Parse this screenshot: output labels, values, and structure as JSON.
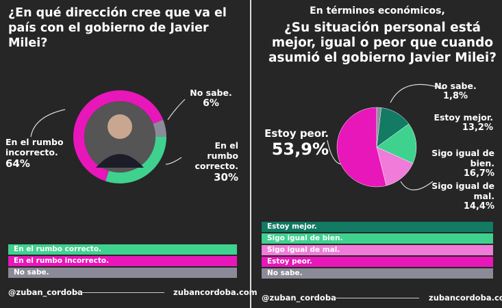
{
  "chart_data": [
    {
      "type": "donut",
      "title": "¿En qué dirección cree que va el país con el gobierno de Javier Milei?",
      "categories": [
        "En el rumbo correcto.",
        "En el rumbo incorrecto.",
        "No sabe."
      ],
      "values": [
        30,
        64,
        6
      ],
      "value_labels": [
        "30%",
        "64%",
        "6%"
      ],
      "colors": [
        "#3fd18e",
        "#e717b9",
        "#8b8b98"
      ]
    },
    {
      "type": "pie",
      "title": "En términos económicos,",
      "subtitle": "¿Su situación personal está mejor, igual o peor que cuando asumió el gobierno Javier Milei?",
      "categories": [
        "Estoy mejor.",
        "Sigo igual de bien.",
        "Sigo igual de mal.",
        "Estoy peor.",
        "No sabe."
      ],
      "values": [
        13.2,
        16.7,
        14.4,
        53.9,
        1.8
      ],
      "value_labels": [
        "13,2%",
        "16,7%",
        "14,4%",
        "53,9%",
        "1,8%"
      ],
      "colors": [
        "#137a64",
        "#3fd18e",
        "#f07bd8",
        "#e717b9",
        "#8b8b98"
      ]
    }
  ],
  "footer": {
    "handle": "@zuban_cordoba",
    "site": "zubancordoba.com"
  }
}
